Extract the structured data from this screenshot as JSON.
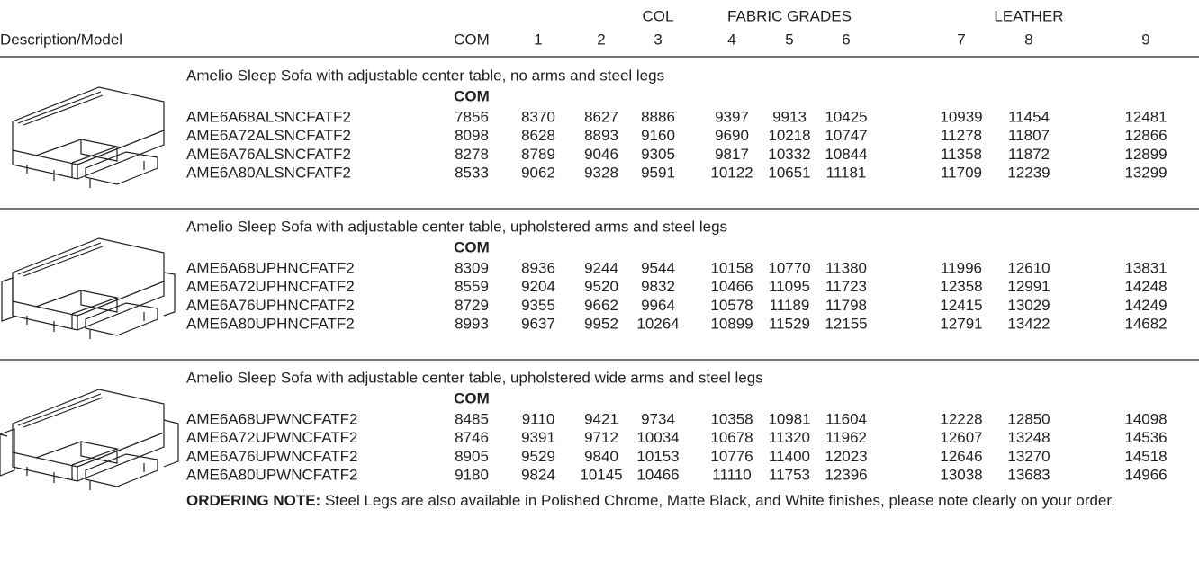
{
  "header": {
    "group_labels": [
      "COL",
      "FABRIC GRADES",
      "LEATHER"
    ],
    "columns": [
      "Description/Model",
      "COM",
      "1",
      "2",
      "3",
      "4",
      "5",
      "6",
      "7",
      "8",
      "9"
    ]
  },
  "sections": [
    {
      "description": "Amelio Sleep Sofa with adjustable center table, no arms and steel legs",
      "com_label": "COM",
      "rows": [
        {
          "model": "AME6A68ALSNCFATF2",
          "prices": [
            7856,
            8370,
            8627,
            8886,
            9397,
            9913,
            10425,
            10939,
            11454,
            12481
          ]
        },
        {
          "model": "AME6A72ALSNCFATF2",
          "prices": [
            8098,
            8628,
            8893,
            9160,
            9690,
            10218,
            10747,
            11278,
            11807,
            12866
          ]
        },
        {
          "model": "AME6A76ALSNCFATF2",
          "prices": [
            8278,
            8789,
            9046,
            9305,
            9817,
            10332,
            10844,
            11358,
            11872,
            12899
          ]
        },
        {
          "model": "AME6A80ALSNCFATF2",
          "prices": [
            8533,
            9062,
            9328,
            9591,
            10122,
            10651,
            11181,
            11709,
            12239,
            13299
          ]
        }
      ]
    },
    {
      "description": "Amelio Sleep Sofa with adjustable center table, upholstered arms and steel legs",
      "com_label": "COM",
      "rows": [
        {
          "model": "AME6A68UPHNCFATF2",
          "prices": [
            8309,
            8936,
            9244,
            9544,
            10158,
            10770,
            11380,
            11996,
            12610,
            13831
          ]
        },
        {
          "model": "AME6A72UPHNCFATF2",
          "prices": [
            8559,
            9204,
            9520,
            9832,
            10466,
            11095,
            11723,
            12358,
            12991,
            14248
          ]
        },
        {
          "model": "AME6A76UPHNCFATF2",
          "prices": [
            8729,
            9355,
            9662,
            9964,
            10578,
            11189,
            11798,
            12415,
            13029,
            14249
          ]
        },
        {
          "model": "AME6A80UPHNCFATF2",
          "prices": [
            8993,
            9637,
            9952,
            10264,
            10899,
            11529,
            12155,
            12791,
            13422,
            14682
          ]
        }
      ]
    },
    {
      "description": "Amelio Sleep Sofa with adjustable center table, upholstered wide arms and steel legs",
      "com_label": "COM",
      "rows": [
        {
          "model": "AME6A68UPWNCFATF2",
          "prices": [
            8485,
            9110,
            9421,
            9734,
            10358,
            10981,
            11604,
            12228,
            12850,
            14098
          ]
        },
        {
          "model": "AME6A72UPWNCFATF2",
          "prices": [
            8746,
            9391,
            9712,
            10034,
            10678,
            11320,
            11962,
            12607,
            13248,
            14536
          ]
        },
        {
          "model": "AME6A76UPWNCFATF2",
          "prices": [
            8905,
            9529,
            9840,
            10153,
            10776,
            11400,
            12023,
            12646,
            13270,
            14518
          ]
        },
        {
          "model": "AME6A80UPWNCFATF2",
          "prices": [
            9180,
            9824,
            10145,
            10466,
            11110,
            11753,
            12396,
            13038,
            13683,
            14966
          ]
        }
      ]
    }
  ],
  "note": {
    "label": "ORDERING NOTE:",
    "text": "Steel Legs are also available in Polished Chrome, Matte Black, and White finishes, please note clearly on your order."
  }
}
